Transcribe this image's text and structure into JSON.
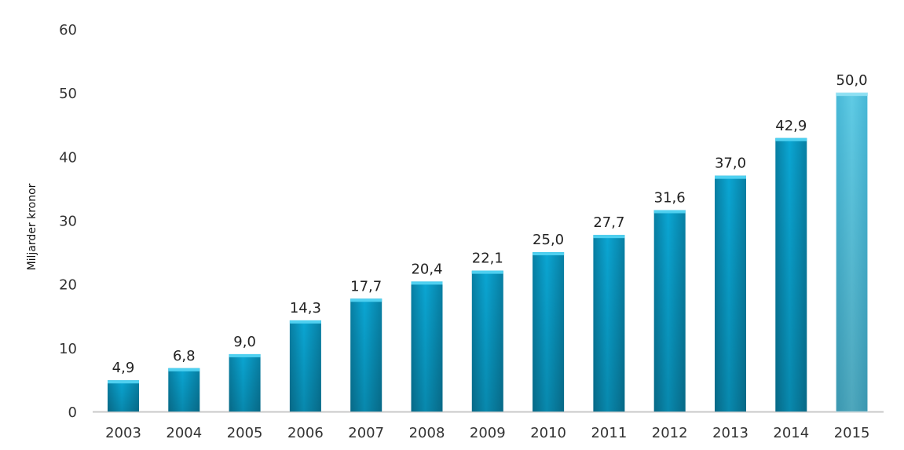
{
  "chart_data": {
    "type": "bar",
    "title": "",
    "xlabel": "",
    "ylabel": "Miljarder kronor",
    "ylim": [
      0,
      60
    ],
    "yticks": [
      "0",
      "10",
      "20",
      "30",
      "40",
      "50",
      "60"
    ],
    "grid": false,
    "categories": [
      "2003",
      "2004",
      "2005",
      "2006",
      "2007",
      "2008",
      "2009",
      "2010",
      "2011",
      "2012",
      "2013",
      "2014",
      "2015"
    ],
    "values": [
      4.9,
      6.8,
      9.0,
      14.3,
      17.7,
      20.4,
      22.1,
      25.0,
      27.7,
      31.6,
      37.0,
      42.9,
      50.0
    ],
    "value_labels": [
      "4,9",
      "6,8",
      "9,0",
      "14,3",
      "17,7",
      "20,4",
      "22,1",
      "25,0",
      "27,7",
      "31,6",
      "37,0",
      "42,9",
      "50,0"
    ],
    "highlighted_category": "2015",
    "colors": {
      "bar": "#0aa6d3",
      "bar_dark": "#087fa3",
      "bar_light": "#4fd0f0",
      "bar_highlight": "#5fcbe5",
      "bar_highlight_dark": "#46b7d6",
      "axis": "#c8c8c8"
    }
  }
}
